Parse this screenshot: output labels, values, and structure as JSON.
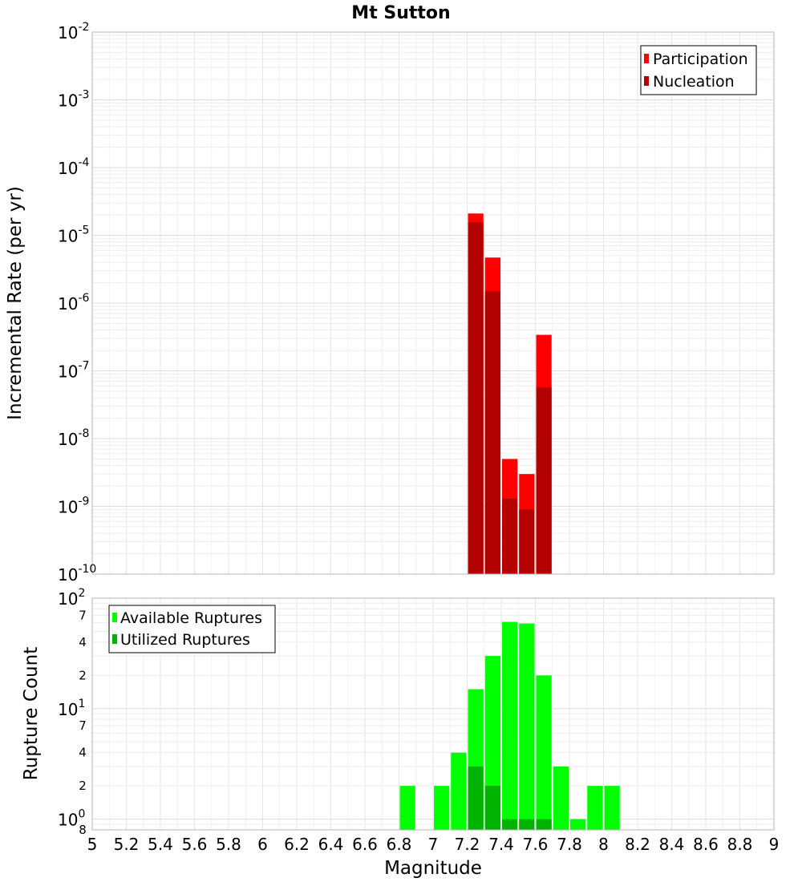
{
  "title": "Mt Sutton",
  "chart_data": [
    {
      "type": "bar",
      "ylabel": "Incremental Rate (per yr)",
      "yscale": "log",
      "ylim": [
        1e-10,
        0.01
      ],
      "xlim": [
        5,
        9
      ],
      "grid": true,
      "legend_position": "top-right",
      "y_ticks": [
        {
          "base": "10",
          "exp": "-2",
          "value": 0.01
        },
        {
          "base": "10",
          "exp": "-3",
          "value": 0.001
        },
        {
          "base": "10",
          "exp": "-4",
          "value": 0.0001
        },
        {
          "base": "10",
          "exp": "-5",
          "value": 1e-05
        },
        {
          "base": "10",
          "exp": "-6",
          "value": 1e-06
        },
        {
          "base": "10",
          "exp": "-7",
          "value": 1e-07
        },
        {
          "base": "10",
          "exp": "-8",
          "value": 1e-08
        },
        {
          "base": "10",
          "exp": "-9",
          "value": 1e-09
        },
        {
          "base": "10",
          "exp": "-10",
          "value": 1e-10
        }
      ],
      "series": [
        {
          "name": "Participation",
          "color": "#ff0000",
          "x": [
            7.25,
            7.35,
            7.45,
            7.55,
            7.65
          ],
          "values": [
            2.1e-05,
            4.7e-06,
            5e-09,
            3e-09,
            3.4e-07
          ]
        },
        {
          "name": "Nucleation",
          "color": "#b30000",
          "x": [
            7.25,
            7.35,
            7.45,
            7.55,
            7.65
          ],
          "values": [
            1.55e-05,
            1.5e-06,
            1.3e-09,
            9e-10,
            5.7e-08
          ]
        }
      ]
    },
    {
      "type": "bar",
      "xlabel": "Magnitude",
      "ylabel": "Rupture Count",
      "yscale": "log",
      "ylim": [
        0.8,
        100
      ],
      "xlim": [
        5,
        9
      ],
      "grid": true,
      "legend_position": "top-left",
      "x_ticks": [
        "5",
        "5.2",
        "5.4",
        "5.6",
        "5.8",
        "6",
        "6.2",
        "6.4",
        "6.6",
        "6.8",
        "7",
        "7.2",
        "7.4",
        "7.6",
        "7.8",
        "8",
        "8.2",
        "8.4",
        "8.6",
        "8.8",
        "9"
      ],
      "y_major_ticks": [
        {
          "base": "10",
          "exp": "2",
          "value": 100
        },
        {
          "base": "10",
          "exp": "1",
          "value": 10
        },
        {
          "base": "10",
          "exp": "0",
          "value": 1
        }
      ],
      "y_minor_ticks": [
        {
          "label": "7",
          "value": 70
        },
        {
          "label": "4",
          "value": 40
        },
        {
          "label": "2",
          "value": 20
        },
        {
          "label": "7",
          "value": 7
        },
        {
          "label": "4",
          "value": 4
        },
        {
          "label": "2",
          "value": 2
        },
        {
          "label": "8",
          "value": 0.8
        }
      ],
      "series": [
        {
          "name": "Available Ruptures",
          "color": "#00ff00",
          "x": [
            6.85,
            7.05,
            7.15,
            7.25,
            7.35,
            7.45,
            7.55,
            7.65,
            7.75,
            7.85,
            7.95,
            8.05
          ],
          "values": [
            2,
            2,
            4,
            15,
            30,
            61,
            59,
            20,
            3,
            1,
            2,
            2
          ]
        },
        {
          "name": "Utilized Ruptures",
          "color": "#00b300",
          "x": [
            7.25,
            7.35,
            7.45,
            7.55,
            7.65
          ],
          "values": [
            3,
            2,
            1,
            1,
            1
          ]
        }
      ]
    }
  ]
}
